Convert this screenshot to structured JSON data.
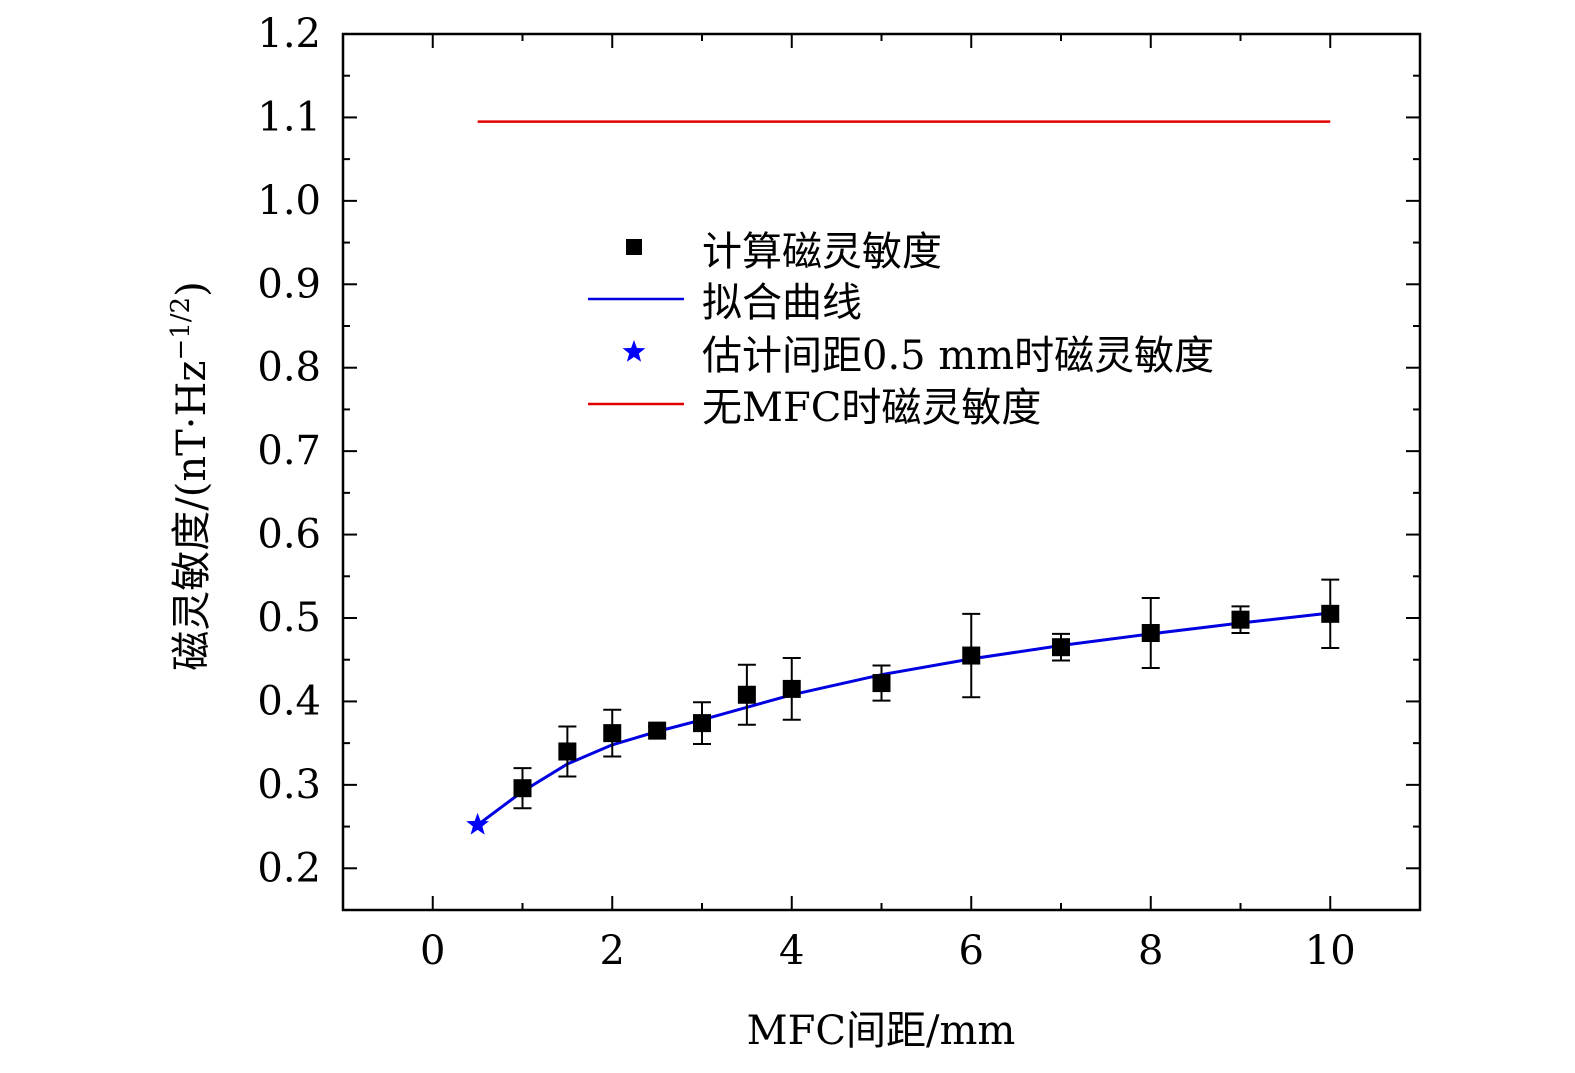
{
  "chart_data": {
    "type": "scatter",
    "xlabel": "MFC间距/mm",
    "ylabel_main": "磁灵敏度/(nT·Hz",
    "ylabel_exp": "−1/2",
    "ylabel_close": ")",
    "xlim": [
      -1,
      11
    ],
    "ylim": [
      0.15,
      1.2
    ],
    "xticks": [
      0,
      2,
      4,
      6,
      8,
      10
    ],
    "xtick_labels": [
      "0",
      "2",
      "4",
      "6",
      "8",
      "10"
    ],
    "yticks": [
      0.2,
      0.3,
      0.4,
      0.5,
      0.6,
      0.7,
      0.8,
      0.9,
      1.0,
      1.1,
      1.2
    ],
    "ytick_labels": [
      "0.2",
      "0.3",
      "0.4",
      "0.5",
      "0.6",
      "0.7",
      "0.8",
      "0.9",
      "1.0",
      "1.1",
      "1.2"
    ],
    "calculated": {
      "name": "计算磁灵敏度",
      "color": "#000000",
      "x": [
        1,
        1.5,
        2,
        2.5,
        3,
        3.5,
        4,
        5,
        6,
        7,
        8,
        9,
        10
      ],
      "y": [
        0.296,
        0.34,
        0.362,
        0.365,
        0.374,
        0.408,
        0.415,
        0.422,
        0.455,
        0.465,
        0.482,
        0.498,
        0.505
      ],
      "err": [
        0.024,
        0.03,
        0.028,
        0.005,
        0.025,
        0.036,
        0.037,
        0.021,
        0.05,
        0.016,
        0.042,
        0.016,
        0.041
      ]
    },
    "fit": {
      "name": "拟合曲线",
      "color": "#0000e0",
      "x": [
        0.5,
        1,
        1.5,
        2,
        2.5,
        3,
        3.5,
        4,
        5,
        6,
        7,
        8,
        9,
        10
      ],
      "y": [
        0.252,
        0.292,
        0.325,
        0.348,
        0.364,
        0.378,
        0.393,
        0.408,
        0.432,
        0.451,
        0.467,
        0.481,
        0.494,
        0.506
      ]
    },
    "estimate": {
      "name": "估计间距0.5 mm时磁灵敏度",
      "color": "#0000ff",
      "x": 0.5,
      "y": 0.252
    },
    "no_mfc": {
      "name": "无MFC时磁灵敏度",
      "color": "#e00000",
      "x_start": 0.5,
      "x_end": 10,
      "y": 1.095
    }
  }
}
